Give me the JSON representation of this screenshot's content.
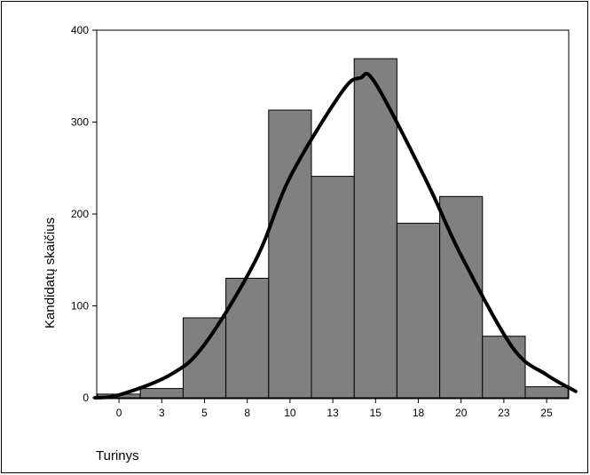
{
  "chart_data": {
    "type": "bar",
    "title": "",
    "xlabel": "Turinys",
    "ylabel": "Kandidatų skaičius",
    "categories": [
      "0",
      "3",
      "5",
      "8",
      "10",
      "13",
      "15",
      "18",
      "20",
      "23",
      "25"
    ],
    "values": [
      4,
      10,
      87,
      130,
      313,
      241,
      369,
      190,
      219,
      67,
      12
    ],
    "ylim": [
      0,
      400
    ],
    "yticks": [
      0,
      100,
      200,
      300,
      400
    ],
    "grid": false,
    "legend": "none",
    "bar_color": "#808080",
    "curve": {
      "type": "normal",
      "x": [
        -1.4,
        0,
        3,
        5,
        8,
        10,
        13,
        14.1,
        15,
        18,
        20,
        23,
        25,
        26.7
      ],
      "y": [
        0,
        3,
        25,
        58,
        150,
        240,
        332,
        348,
        342,
        235,
        155,
        55,
        25,
        7
      ],
      "color": "#000000"
    }
  }
}
